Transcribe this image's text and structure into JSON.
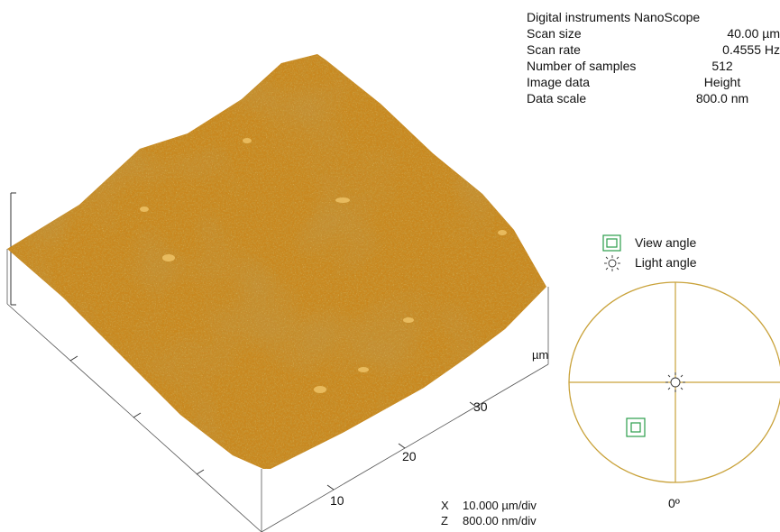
{
  "info_panel": {
    "title": "Digital instruments NanoScope",
    "rows": [
      {
        "label": "Scan size",
        "value": "40.00 µm"
      },
      {
        "label": "Scan rate",
        "value": "0.4555 Hz"
      },
      {
        "label": "Number of samples",
        "value": "512"
      },
      {
        "label": "Image data",
        "value": "Height"
      },
      {
        "label": "Data scale",
        "value": "800.0 nm"
      }
    ]
  },
  "surface_plot": {
    "axis_unit": "µm",
    "tick_labels": [
      "10",
      "20",
      "30"
    ],
    "scale": {
      "x_axis": "X",
      "x_value": "10.000 µm/div",
      "z_axis": "Z",
      "z_value": "800.00 nm/div"
    },
    "colors": {
      "surface_base": "#c8871e",
      "surface_dark": "#9a5a10",
      "surface_light": "#e7b03c"
    }
  },
  "orientation_widget": {
    "view_angle_label": "View angle",
    "light_angle_label": "Light angle",
    "angle_label": "0º",
    "colors": {
      "circle": "#c9a23a",
      "view_marker": "#2a9d4a",
      "light_marker": "#333333"
    }
  }
}
